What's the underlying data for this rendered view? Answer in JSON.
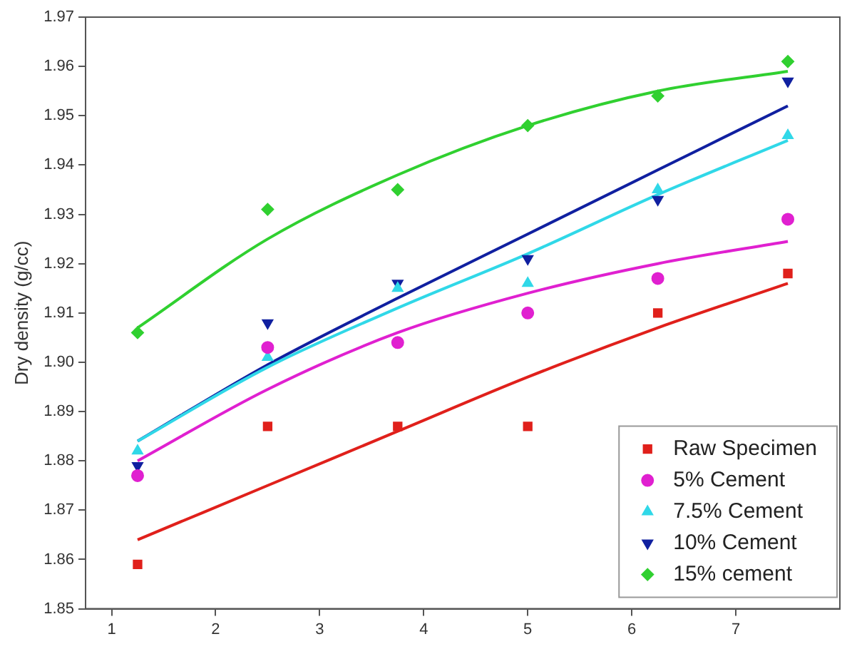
{
  "chart_data": {
    "type": "scatter",
    "ylabel": "Dry density (g/cc)",
    "x": [
      1.25,
      2.5,
      3.75,
      5,
      6.25,
      7.5
    ],
    "xlim": [
      0.75,
      8
    ],
    "xticks": [
      1,
      2,
      3,
      4,
      5,
      6,
      7
    ],
    "ylim": [
      1.85,
      1.97
    ],
    "yticks": [
      1.85,
      1.86,
      1.87,
      1.88,
      1.89,
      {
        "value": 1.9,
        "label": "1.90"
      },
      1.91,
      1.92,
      1.93,
      1.94,
      1.95,
      1.96,
      1.97
    ],
    "grid": false,
    "legend": "bottom right",
    "series": [
      {
        "name": "Raw Specimen",
        "color": "#e0201b",
        "marker": "square",
        "values": [
          1.859,
          1.887,
          1.887,
          1.887,
          1.91,
          1.918
        ]
      },
      {
        "name": "5% Cement",
        "color": "#e020d0",
        "marker": "circle",
        "values": [
          1.877,
          1.903,
          1.904,
          1.91,
          1.917,
          1.929
        ]
      },
      {
        "name": "7.5% Cement",
        "color": "#30d8e8",
        "marker": "triangle",
        "values": [
          1.882,
          1.901,
          1.915,
          1.916,
          1.935,
          1.946
        ]
      },
      {
        "name": "10% Cement",
        "color": "#1020a0",
        "marker": "triangle-down",
        "values": [
          1.879,
          1.908,
          1.916,
          1.921,
          1.933,
          1.957
        ]
      },
      {
        "name": "15% cement",
        "color": "#30d030",
        "marker": "diamond",
        "values": [
          1.906,
          1.931,
          1.935,
          1.948,
          1.954,
          1.961
        ]
      },
      {
        "type": "line",
        "color": "#e0201b",
        "marker": "none",
        "values": [
          1.864,
          1.875,
          1.886,
          1.897,
          1.907,
          1.916
        ]
      },
      {
        "type": "line",
        "color": "#e020d0",
        "marker": "none",
        "values": [
          1.88,
          1.8945,
          1.906,
          1.914,
          1.92,
          1.9245
        ]
      },
      {
        "type": "line",
        "color": "#30d8e8",
        "marker": "none",
        "values": [
          1.884,
          1.899,
          1.911,
          1.922,
          1.934,
          1.945
        ]
      },
      {
        "type": "line",
        "color": "#1020a0",
        "marker": "none",
        "values": [
          1.884,
          1.8995,
          1.913,
          1.926,
          1.939,
          1.952
        ]
      },
      {
        "type": "line",
        "color": "#30d030",
        "marker": "none",
        "values": [
          1.907,
          1.925,
          1.938,
          1.948,
          1.955,
          1.959
        ]
      }
    ]
  }
}
